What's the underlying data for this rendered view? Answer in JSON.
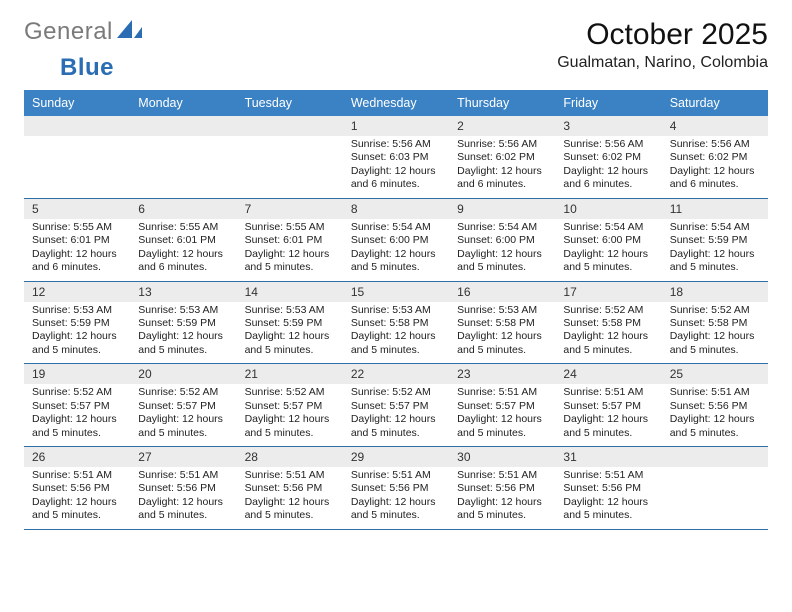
{
  "logo": {
    "text_gray": "General",
    "text_blue": "Blue"
  },
  "title": "October 2025",
  "location": "Gualmatan, Narino, Colombia",
  "weekdays": [
    "Sunday",
    "Monday",
    "Tuesday",
    "Wednesday",
    "Thursday",
    "Friday",
    "Saturday"
  ],
  "colors": {
    "header_bg": "#3b82c4",
    "header_text": "#ffffff",
    "daynum_bg": "#ececec",
    "week_divider": "#2f6fa8",
    "logo_gray": "#7a7a7a",
    "logo_blue": "#2a6db3",
    "body_text": "#222222"
  },
  "weeks": [
    [
      {
        "blank": true
      },
      {
        "blank": true
      },
      {
        "blank": true
      },
      {
        "day": "1",
        "sunrise": "Sunrise: 5:56 AM",
        "sunset": "Sunset: 6:03 PM",
        "daylight": "Daylight: 12 hours and 6 minutes."
      },
      {
        "day": "2",
        "sunrise": "Sunrise: 5:56 AM",
        "sunset": "Sunset: 6:02 PM",
        "daylight": "Daylight: 12 hours and 6 minutes."
      },
      {
        "day": "3",
        "sunrise": "Sunrise: 5:56 AM",
        "sunset": "Sunset: 6:02 PM",
        "daylight": "Daylight: 12 hours and 6 minutes."
      },
      {
        "day": "4",
        "sunrise": "Sunrise: 5:56 AM",
        "sunset": "Sunset: 6:02 PM",
        "daylight": "Daylight: 12 hours and 6 minutes."
      }
    ],
    [
      {
        "day": "5",
        "sunrise": "Sunrise: 5:55 AM",
        "sunset": "Sunset: 6:01 PM",
        "daylight": "Daylight: 12 hours and 6 minutes."
      },
      {
        "day": "6",
        "sunrise": "Sunrise: 5:55 AM",
        "sunset": "Sunset: 6:01 PM",
        "daylight": "Daylight: 12 hours and 6 minutes."
      },
      {
        "day": "7",
        "sunrise": "Sunrise: 5:55 AM",
        "sunset": "Sunset: 6:01 PM",
        "daylight": "Daylight: 12 hours and 5 minutes."
      },
      {
        "day": "8",
        "sunrise": "Sunrise: 5:54 AM",
        "sunset": "Sunset: 6:00 PM",
        "daylight": "Daylight: 12 hours and 5 minutes."
      },
      {
        "day": "9",
        "sunrise": "Sunrise: 5:54 AM",
        "sunset": "Sunset: 6:00 PM",
        "daylight": "Daylight: 12 hours and 5 minutes."
      },
      {
        "day": "10",
        "sunrise": "Sunrise: 5:54 AM",
        "sunset": "Sunset: 6:00 PM",
        "daylight": "Daylight: 12 hours and 5 minutes."
      },
      {
        "day": "11",
        "sunrise": "Sunrise: 5:54 AM",
        "sunset": "Sunset: 5:59 PM",
        "daylight": "Daylight: 12 hours and 5 minutes."
      }
    ],
    [
      {
        "day": "12",
        "sunrise": "Sunrise: 5:53 AM",
        "sunset": "Sunset: 5:59 PM",
        "daylight": "Daylight: 12 hours and 5 minutes."
      },
      {
        "day": "13",
        "sunrise": "Sunrise: 5:53 AM",
        "sunset": "Sunset: 5:59 PM",
        "daylight": "Daylight: 12 hours and 5 minutes."
      },
      {
        "day": "14",
        "sunrise": "Sunrise: 5:53 AM",
        "sunset": "Sunset: 5:59 PM",
        "daylight": "Daylight: 12 hours and 5 minutes."
      },
      {
        "day": "15",
        "sunrise": "Sunrise: 5:53 AM",
        "sunset": "Sunset: 5:58 PM",
        "daylight": "Daylight: 12 hours and 5 minutes."
      },
      {
        "day": "16",
        "sunrise": "Sunrise: 5:53 AM",
        "sunset": "Sunset: 5:58 PM",
        "daylight": "Daylight: 12 hours and 5 minutes."
      },
      {
        "day": "17",
        "sunrise": "Sunrise: 5:52 AM",
        "sunset": "Sunset: 5:58 PM",
        "daylight": "Daylight: 12 hours and 5 minutes."
      },
      {
        "day": "18",
        "sunrise": "Sunrise: 5:52 AM",
        "sunset": "Sunset: 5:58 PM",
        "daylight": "Daylight: 12 hours and 5 minutes."
      }
    ],
    [
      {
        "day": "19",
        "sunrise": "Sunrise: 5:52 AM",
        "sunset": "Sunset: 5:57 PM",
        "daylight": "Daylight: 12 hours and 5 minutes."
      },
      {
        "day": "20",
        "sunrise": "Sunrise: 5:52 AM",
        "sunset": "Sunset: 5:57 PM",
        "daylight": "Daylight: 12 hours and 5 minutes."
      },
      {
        "day": "21",
        "sunrise": "Sunrise: 5:52 AM",
        "sunset": "Sunset: 5:57 PM",
        "daylight": "Daylight: 12 hours and 5 minutes."
      },
      {
        "day": "22",
        "sunrise": "Sunrise: 5:52 AM",
        "sunset": "Sunset: 5:57 PM",
        "daylight": "Daylight: 12 hours and 5 minutes."
      },
      {
        "day": "23",
        "sunrise": "Sunrise: 5:51 AM",
        "sunset": "Sunset: 5:57 PM",
        "daylight": "Daylight: 12 hours and 5 minutes."
      },
      {
        "day": "24",
        "sunrise": "Sunrise: 5:51 AM",
        "sunset": "Sunset: 5:57 PM",
        "daylight": "Daylight: 12 hours and 5 minutes."
      },
      {
        "day": "25",
        "sunrise": "Sunrise: 5:51 AM",
        "sunset": "Sunset: 5:56 PM",
        "daylight": "Daylight: 12 hours and 5 minutes."
      }
    ],
    [
      {
        "day": "26",
        "sunrise": "Sunrise: 5:51 AM",
        "sunset": "Sunset: 5:56 PM",
        "daylight": "Daylight: 12 hours and 5 minutes."
      },
      {
        "day": "27",
        "sunrise": "Sunrise: 5:51 AM",
        "sunset": "Sunset: 5:56 PM",
        "daylight": "Daylight: 12 hours and 5 minutes."
      },
      {
        "day": "28",
        "sunrise": "Sunrise: 5:51 AM",
        "sunset": "Sunset: 5:56 PM",
        "daylight": "Daylight: 12 hours and 5 minutes."
      },
      {
        "day": "29",
        "sunrise": "Sunrise: 5:51 AM",
        "sunset": "Sunset: 5:56 PM",
        "daylight": "Daylight: 12 hours and 5 minutes."
      },
      {
        "day": "30",
        "sunrise": "Sunrise: 5:51 AM",
        "sunset": "Sunset: 5:56 PM",
        "daylight": "Daylight: 12 hours and 5 minutes."
      },
      {
        "day": "31",
        "sunrise": "Sunrise: 5:51 AM",
        "sunset": "Sunset: 5:56 PM",
        "daylight": "Daylight: 12 hours and 5 minutes."
      },
      {
        "blank": true
      }
    ]
  ]
}
